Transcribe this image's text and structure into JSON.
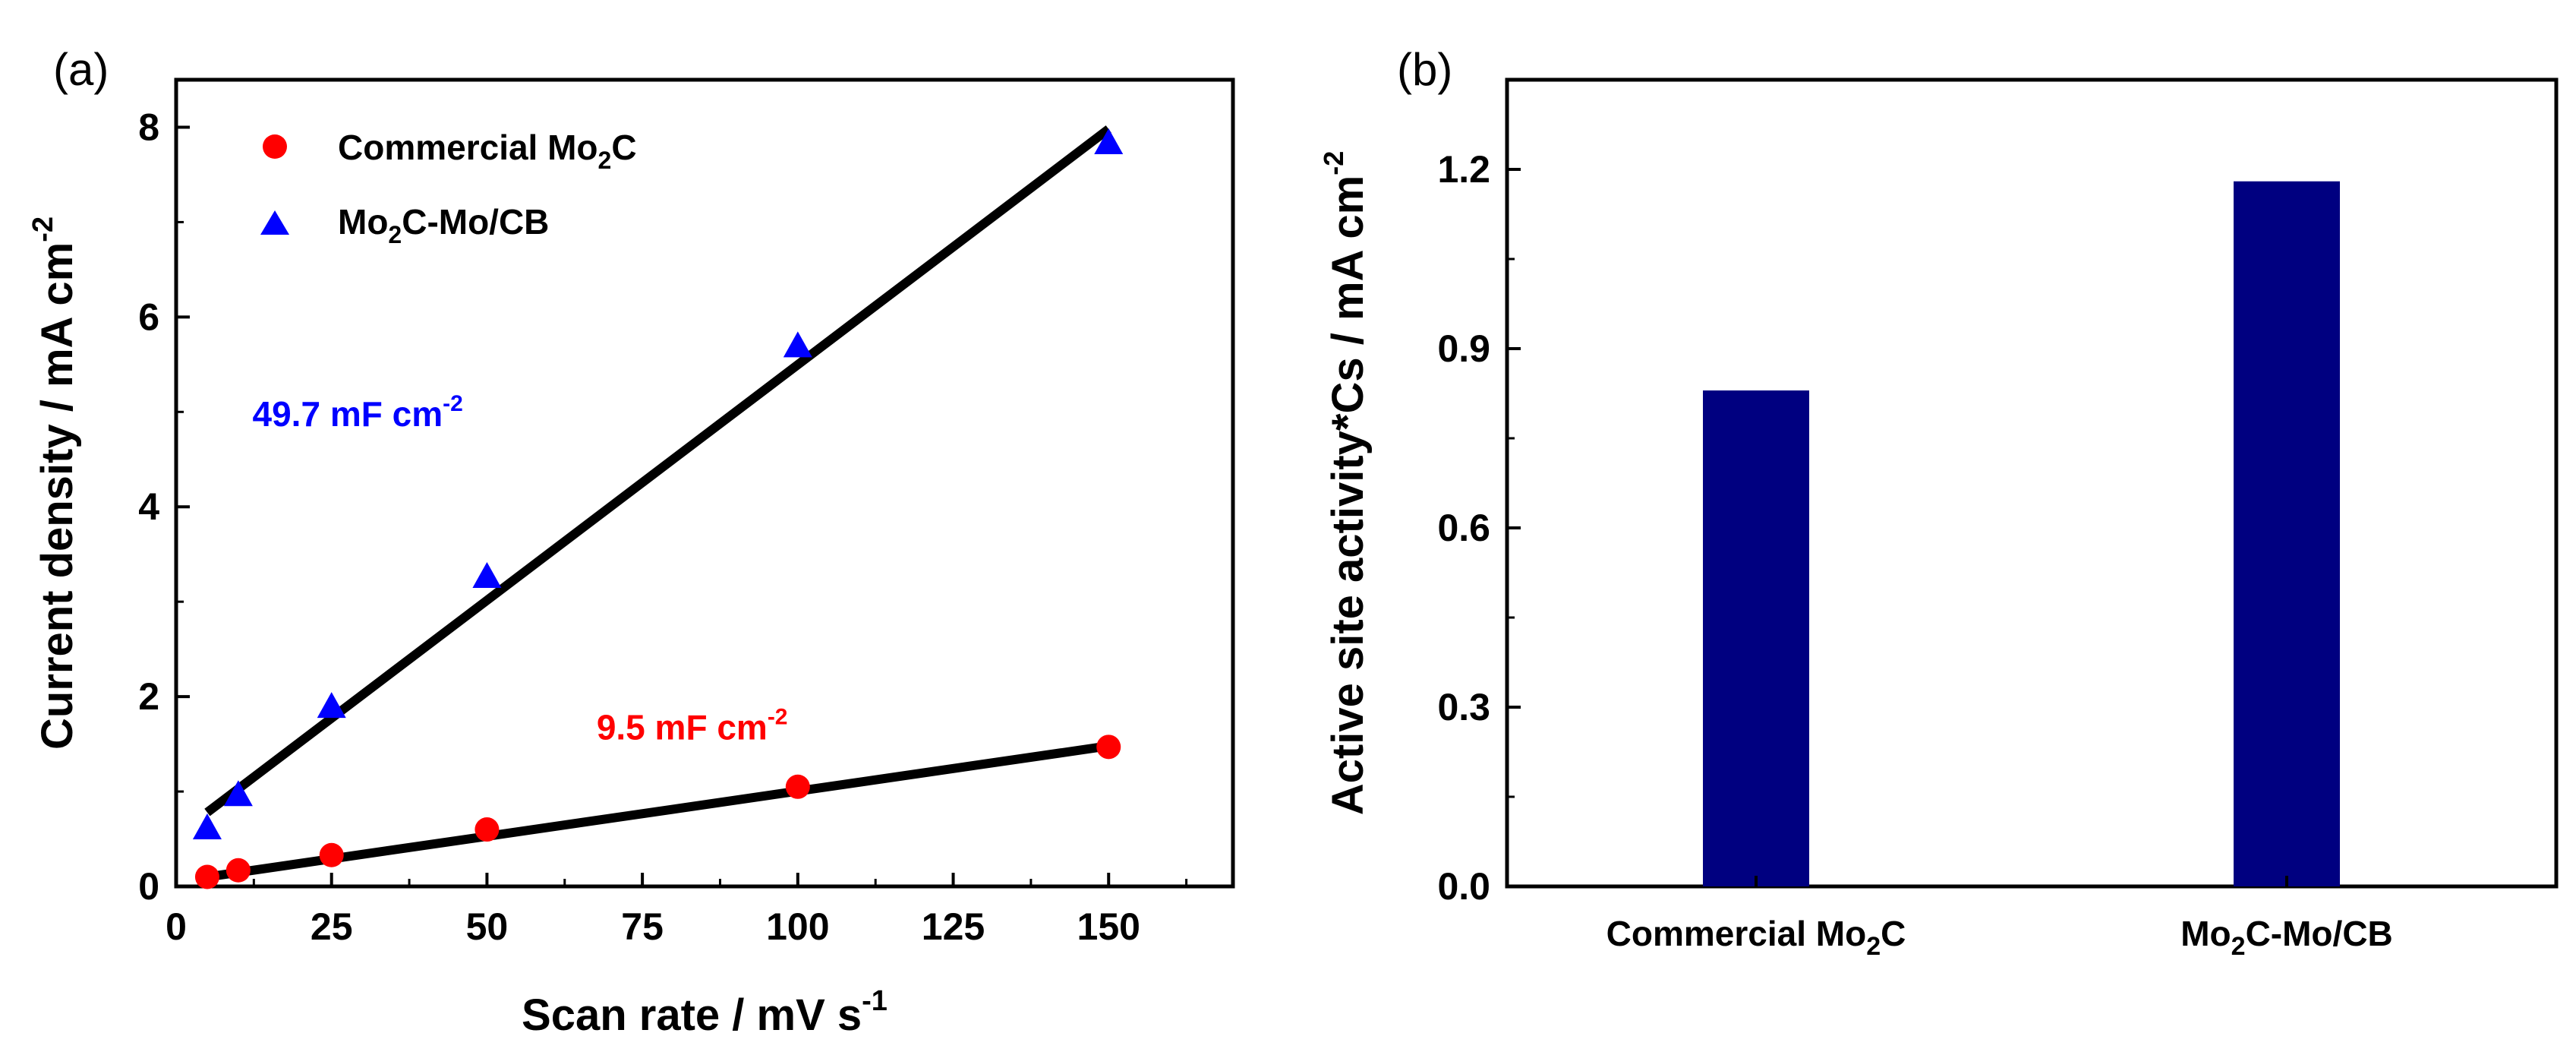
{
  "chart_data": [
    {
      "panel": "(a)",
      "type": "scatter",
      "xlabel": "Scan rate / mV s",
      "xlabel_sup": "-1",
      "ylabel": "Current density / mA cm",
      "ylabel_sup": "-2",
      "xlim": [
        0,
        170
      ],
      "ylim": [
        0,
        8.5
      ],
      "xticks": [
        0,
        25,
        50,
        75,
        100,
        125,
        150
      ],
      "yticks": [
        0,
        2,
        4,
        6,
        8
      ],
      "legend_position": "top-left",
      "series": [
        {
          "name_main": "Commercial Mo",
          "name_sub": "2",
          "name_tail": "C",
          "marker": "circle",
          "color": "#ff0000",
          "x": [
            5,
            10,
            25,
            50,
            100,
            150
          ],
          "y": [
            0.1,
            0.17,
            0.33,
            0.6,
            1.05,
            1.47
          ],
          "fit": {
            "x": [
              5,
              150
            ],
            "y": [
              0.1,
              1.48
            ]
          },
          "annotation": {
            "text": "9.5 mF cm",
            "sup": "-2",
            "x": 100,
            "y": 1.55
          }
        },
        {
          "name_main": "Mo",
          "name_sub": "2",
          "name_tail": "C-Mo/CB",
          "marker": "triangle",
          "color": "#0000ff",
          "x": [
            5,
            10,
            25,
            50,
            100,
            150
          ],
          "y": [
            0.6,
            0.95,
            1.88,
            3.25,
            5.68,
            7.82
          ],
          "fit": {
            "x": [
              5,
              150
            ],
            "y": [
              0.78,
              7.98
            ]
          },
          "annotation": {
            "text": "49.7 mF cm",
            "sup": "-2",
            "x": 40,
            "y": 4.85
          }
        }
      ]
    },
    {
      "panel": "(b)",
      "type": "bar",
      "ylabel": "Active site activity*Cs / mA cm",
      "ylabel_sup": "-2",
      "ylim": [
        0,
        1.35
      ],
      "yticks": [
        "0.0",
        "0.3",
        "0.6",
        "0.9",
        "1.2"
      ],
      "bar_color": "#000080",
      "categories": [
        {
          "main": "Commercial Mo",
          "sub": "2",
          "tail": "C"
        },
        {
          "main": "Mo",
          "sub": "2",
          "tail": "C-Mo/CB"
        }
      ],
      "values": [
        0.83,
        1.18
      ]
    }
  ]
}
